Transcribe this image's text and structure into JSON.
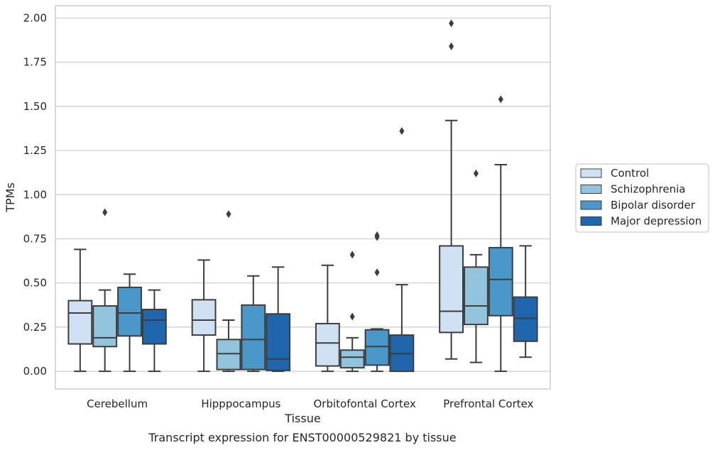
{
  "caption": "Transcript expression for ENST00000529821 by tissue",
  "chart_data": {
    "type": "box",
    "title": "",
    "xlabel": "Tissue",
    "ylabel": "TPMs",
    "ylim": [
      -0.1,
      2.07
    ],
    "yticks": [
      "0.00",
      "0.25",
      "0.50",
      "0.75",
      "1.00",
      "1.25",
      "1.50",
      "1.75",
      "2.00"
    ],
    "grid": "horizontal",
    "legend_position": "right",
    "categories": [
      "Cerebellum",
      "Hipppocampus",
      "Orbitofontal Cortex",
      "Prefrontal Cortex"
    ],
    "series": [
      {
        "name": "Control",
        "color": "#cfe1f2",
        "boxes": [
          {
            "whisker_low": 0.0,
            "q1": 0.155,
            "median": 0.33,
            "q3": 0.4,
            "whisker_high": 0.69,
            "outliers": []
          },
          {
            "whisker_low": 0.0,
            "q1": 0.205,
            "median": 0.29,
            "q3": 0.405,
            "whisker_high": 0.63,
            "outliers": []
          },
          {
            "whisker_low": 0.0,
            "q1": 0.03,
            "median": 0.16,
            "q3": 0.27,
            "whisker_high": 0.6,
            "outliers": []
          },
          {
            "whisker_low": 0.07,
            "q1": 0.22,
            "median": 0.34,
            "q3": 0.71,
            "whisker_high": 1.42,
            "outliers": [
              1.84,
              1.97
            ]
          }
        ]
      },
      {
        "name": "Schizophrenia",
        "color": "#93c4de",
        "boxes": [
          {
            "whisker_low": 0.0,
            "q1": 0.14,
            "median": 0.19,
            "q3": 0.37,
            "whisker_high": 0.46,
            "outliers": [
              0.9
            ]
          },
          {
            "whisker_low": 0.0,
            "q1": 0.01,
            "median": 0.1,
            "q3": 0.18,
            "whisker_high": 0.29,
            "outliers": [
              0.89
            ]
          },
          {
            "whisker_low": 0.0,
            "q1": 0.02,
            "median": 0.08,
            "q3": 0.12,
            "whisker_high": 0.19,
            "outliers": [
              0.31,
              0.66
            ]
          },
          {
            "whisker_low": 0.05,
            "q1": 0.265,
            "median": 0.37,
            "q3": 0.59,
            "whisker_high": 0.66,
            "outliers": [
              1.12
            ]
          }
        ]
      },
      {
        "name": "Bipolar disorder",
        "color": "#4a98c9",
        "boxes": [
          {
            "whisker_low": 0.0,
            "q1": 0.2,
            "median": 0.33,
            "q3": 0.475,
            "whisker_high": 0.55,
            "outliers": []
          },
          {
            "whisker_low": 0.0,
            "q1": 0.01,
            "median": 0.18,
            "q3": 0.375,
            "whisker_high": 0.54,
            "outliers": []
          },
          {
            "whisker_low": 0.0,
            "q1": 0.035,
            "median": 0.14,
            "q3": 0.235,
            "whisker_high": 0.24,
            "outliers": [
              0.56,
              0.76,
              0.77
            ]
          },
          {
            "whisker_low": 0.0,
            "q1": 0.315,
            "median": 0.52,
            "q3": 0.7,
            "whisker_high": 1.17,
            "outliers": [
              1.54
            ]
          }
        ]
      },
      {
        "name": "Major depression",
        "color": "#2066ac",
        "boxes": [
          {
            "whisker_low": 0.0,
            "q1": 0.155,
            "median": 0.29,
            "q3": 0.35,
            "whisker_high": 0.46,
            "outliers": []
          },
          {
            "whisker_low": 0.0,
            "q1": 0.005,
            "median": 0.07,
            "q3": 0.325,
            "whisker_high": 0.59,
            "outliers": []
          },
          {
            "whisker_low": 0.0,
            "q1": 0.0,
            "median": 0.1,
            "q3": 0.205,
            "whisker_high": 0.49,
            "outliers": [
              1.36
            ]
          },
          {
            "whisker_low": 0.08,
            "q1": 0.17,
            "median": 0.3,
            "q3": 0.42,
            "whisker_high": 0.71,
            "outliers": []
          }
        ]
      }
    ]
  }
}
